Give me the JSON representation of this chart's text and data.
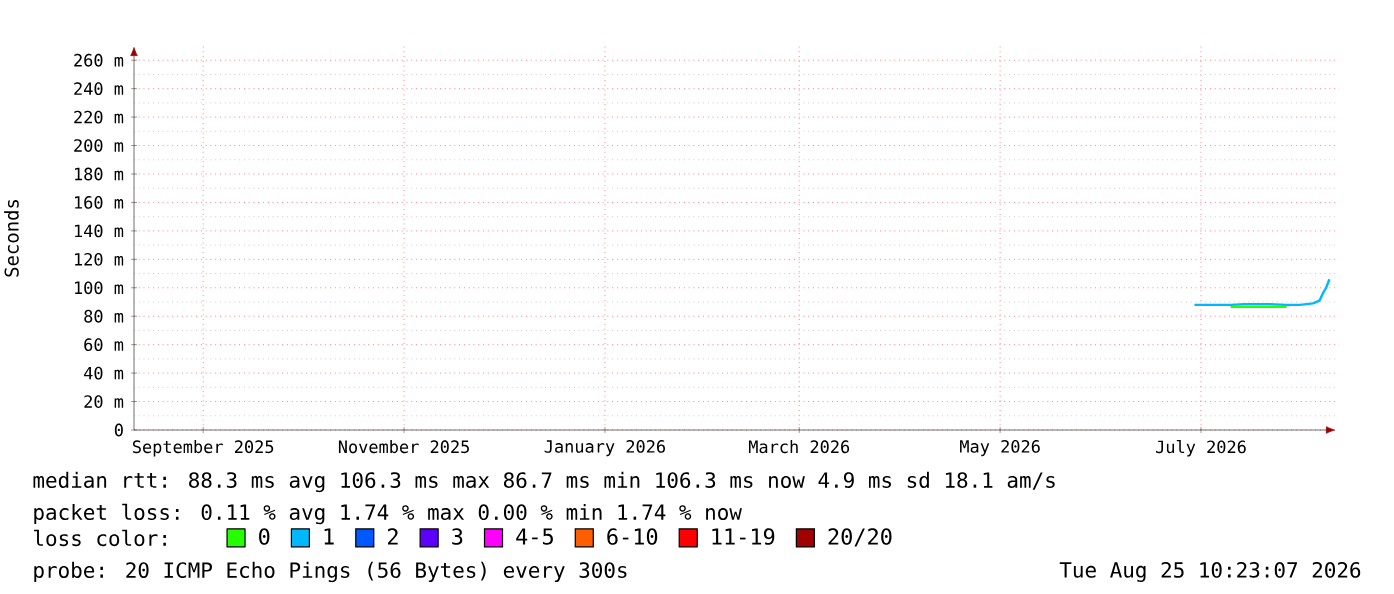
{
  "chart_data": {
    "type": "line",
    "ylabel": "Seconds",
    "xlim": [
      "2025-08-25",
      "2026-08-25"
    ],
    "ylim": [
      0,
      270
    ],
    "xticks": [
      {
        "value": "2025-09-15",
        "label": "September 2025"
      },
      {
        "value": "2025-11-15",
        "label": "November 2025"
      },
      {
        "value": "2026-01-15",
        "label": "January 2026"
      },
      {
        "value": "2026-03-15",
        "label": "March 2026"
      },
      {
        "value": "2026-05-15",
        "label": "May 2026"
      },
      {
        "value": "2026-07-15",
        "label": "July 2026"
      }
    ],
    "yticks": [
      0,
      {
        "value": 20,
        "label": "20 m"
      },
      {
        "value": 40,
        "label": "40 m"
      },
      {
        "value": 60,
        "label": "60 m"
      },
      {
        "value": 80,
        "label": "80 m"
      },
      {
        "value": 100,
        "label": "100 m"
      },
      {
        "value": 120,
        "label": "120 m"
      },
      {
        "value": 140,
        "label": "140 m"
      },
      {
        "value": 160,
        "label": "160 m"
      },
      {
        "value": 180,
        "label": "180 m"
      },
      {
        "value": 200,
        "label": "200 m"
      },
      {
        "value": 220,
        "label": "220 m"
      },
      {
        "value": 240,
        "label": "240 m"
      },
      {
        "value": 260,
        "label": "260 m"
      }
    ],
    "grid": true,
    "legend": "bottom",
    "legend_title": "loss color:",
    "marker": "none",
    "line_style": "solid",
    "series": [
      {
        "name": "0",
        "color": "#26ff00",
        "x": [
          "2026-07-24",
          "2026-07-28",
          "2026-08-01",
          "2026-08-05",
          "2026-08-10"
        ],
        "values": [
          86.7,
          86.7,
          86.7,
          86.7,
          86.7
        ]
      },
      {
        "name": "1",
        "color": "#00b8ff",
        "x": [
          "2026-07-13",
          "2026-07-16",
          "2026-07-19",
          "2026-07-22",
          "2026-07-24",
          "2026-07-28",
          "2026-08-01",
          "2026-08-05",
          "2026-08-10",
          "2026-08-14",
          "2026-08-18",
          "2026-08-20",
          "2026-08-21",
          "2026-08-22",
          "2026-08-23"
        ],
        "values": [
          88,
          88,
          88,
          88,
          88,
          88.5,
          88.5,
          88.5,
          88,
          88,
          89,
          91,
          96,
          100,
          106
        ]
      },
      {
        "name": "2",
        "color": "#0059ff"
      },
      {
        "name": "3",
        "color": "#5e00ff"
      },
      {
        "name": "4-5",
        "color": "#ff00ff"
      },
      {
        "name": "6-10",
        "color": "#ff5e00"
      },
      {
        "name": "11-19",
        "color": "#ff0000"
      },
      {
        "name": "20/20",
        "color": "#a10000"
      }
    ],
    "annotations": [
      "median rtt:  88.3 ms avg  106.3 ms max  86.7 ms min  106.3 ms now  4.9 ms sd  18.1  am/s",
      "packet loss: 0.11 % avg  1.74 % max  0.00 % min  1.74 % now",
      "probe:  20 ICMP Echo Pings (56 Bytes) every 300s",
      "Tue Aug 25 10:23:07 2026"
    ]
  }
}
